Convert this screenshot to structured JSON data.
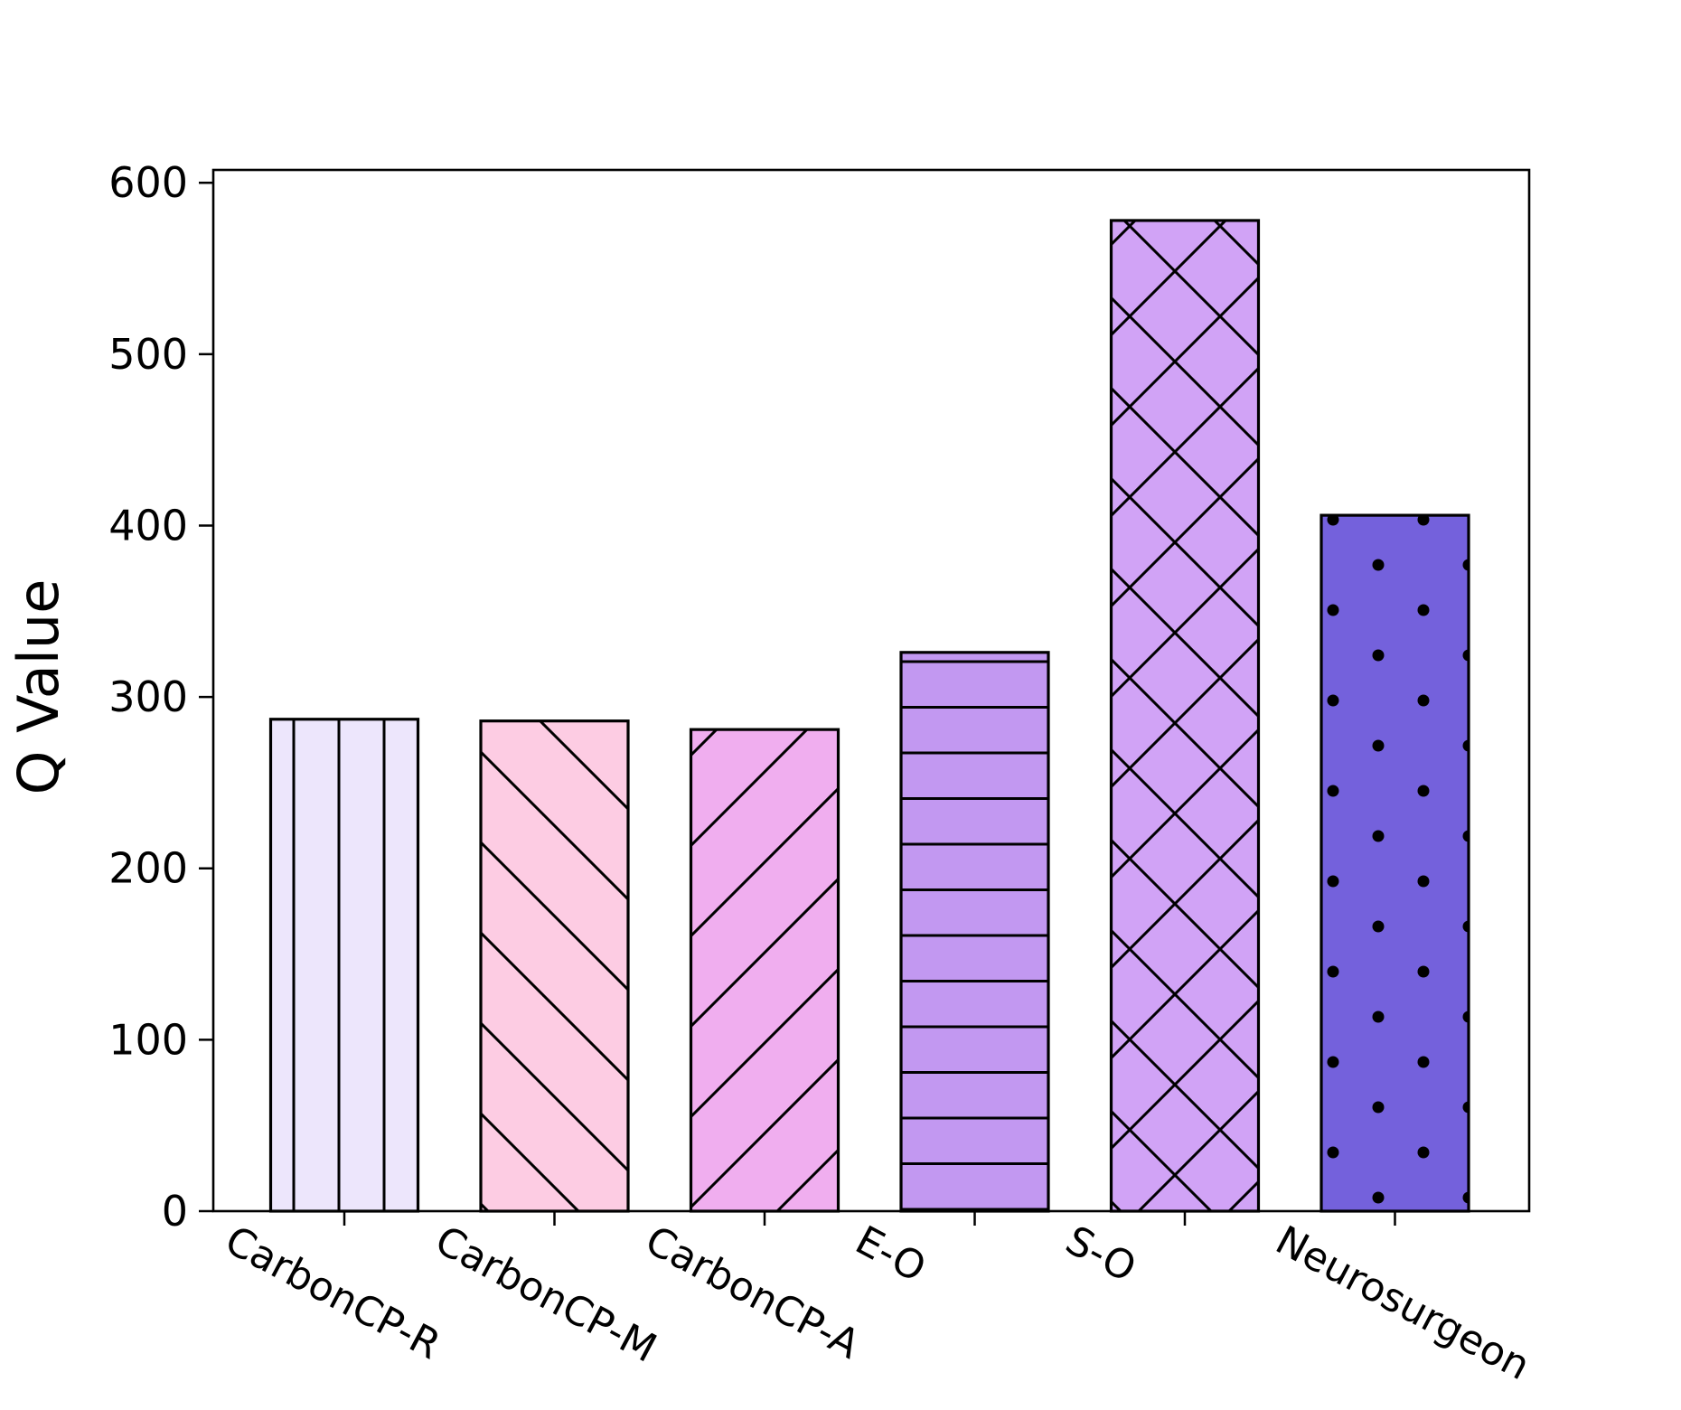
{
  "chart_data": {
    "type": "bar",
    "title": "",
    "xlabel": "",
    "ylabel": "Q Value",
    "ylim": [
      0,
      600
    ],
    "yticks": [
      0,
      100,
      200,
      300,
      400,
      500,
      600
    ],
    "grid": false,
    "categories": [
      "CarbonCP-R",
      "CarbonCP-M",
      "CarbonCP-A",
      "E-O",
      "S-O",
      "Neurosurgeon"
    ],
    "values": [
      287,
      286,
      281,
      326,
      578,
      406
    ],
    "colors": [
      "#ede6fc",
      "#fdcce3",
      "#f0aeef",
      "#c298f1",
      "#d1a3f6",
      "#7461dc"
    ],
    "hatches": [
      "vertical",
      "backslash",
      "slash",
      "horizontal",
      "cross",
      "dots"
    ],
    "edge_color": "#000000"
  }
}
